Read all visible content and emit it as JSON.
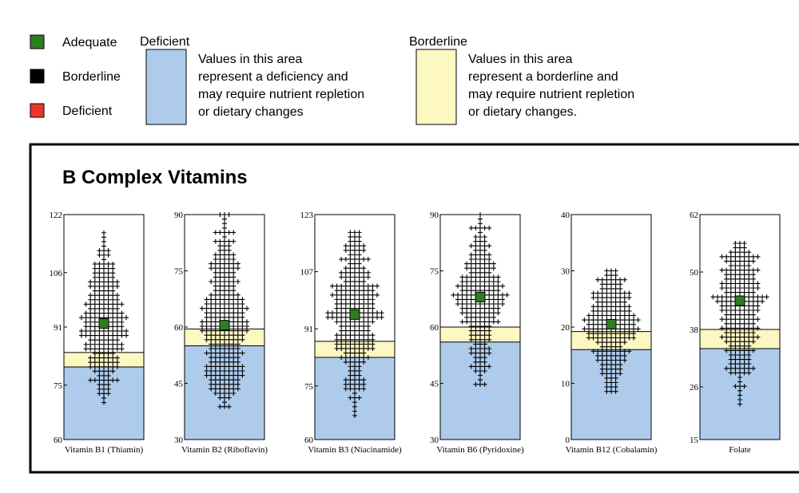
{
  "legend": {
    "status": [
      {
        "label": "Adequate",
        "color": "#2e7d1f"
      },
      {
        "label": "Borderline",
        "color": "#000000"
      },
      {
        "label": "Deficient",
        "color": "#e8372a"
      }
    ],
    "deficient_zone": {
      "title": "Deficient",
      "color": "#aecbec",
      "lines": [
        "Values in this area",
        "represent a deficiency and",
        "may require nutrient repletion",
        "or dietary changes"
      ]
    },
    "borderline_zone": {
      "title": "Borderline",
      "color": "#fdf7c2",
      "lines": [
        "Values in this area",
        "represent a borderline and",
        "may require nutrient repletion",
        "or dietary changes."
      ]
    }
  },
  "section": {
    "title": "B Complex Vitamins"
  },
  "chart_data": [
    {
      "type": "scatter",
      "name": "Vitamin B1 (Thiamin)",
      "ylim": [
        60,
        122
      ],
      "ticks": [
        60,
        75,
        91,
        106,
        122
      ],
      "deficient_below": 80,
      "borderline_below": 84,
      "value": 92,
      "status": "Adequate",
      "spread": [
        69,
        117
      ]
    },
    {
      "type": "scatter",
      "name": "Vitamin B2 (Riboflavin)",
      "ylim": [
        30,
        90
      ],
      "ticks": [
        30,
        45,
        60,
        75,
        90
      ],
      "deficient_below": 55,
      "borderline_below": 59.5,
      "value": 60.5,
      "status": "Adequate",
      "spread": [
        38,
        90
      ]
    },
    {
      "type": "scatter",
      "name": "Vitamin B3 (Niacinamide)",
      "ylim": [
        60,
        123
      ],
      "ticks": [
        60,
        75,
        91,
        107,
        123
      ],
      "deficient_below": 83,
      "borderline_below": 87.5,
      "value": 95,
      "status": "Adequate",
      "spread": [
        66,
        118
      ]
    },
    {
      "type": "scatter",
      "name": "Vitamin B6 (Pyridoxine)",
      "ylim": [
        30,
        90
      ],
      "ticks": [
        30,
        45,
        60,
        75,
        90
      ],
      "deficient_below": 56,
      "borderline_below": 60,
      "value": 68,
      "status": "Adequate",
      "spread": [
        44,
        90
      ]
    },
    {
      "type": "scatter",
      "name": "Vitamin B12 (Cobalamin)",
      "ylim": [
        0,
        40
      ],
      "ticks": [
        0,
        10,
        20,
        30,
        40
      ],
      "deficient_below": 16,
      "borderline_below": 19.2,
      "value": 20.5,
      "status": "Adequate",
      "spread": [
        8,
        30
      ]
    },
    {
      "type": "scatter",
      "name": "Folate",
      "ylim": [
        15,
        62
      ],
      "ticks": [
        15,
        26,
        38,
        50,
        62
      ],
      "deficient_below": 34,
      "borderline_below": 38,
      "value": 44,
      "status": "Adequate",
      "spread": [
        22,
        56
      ]
    }
  ]
}
